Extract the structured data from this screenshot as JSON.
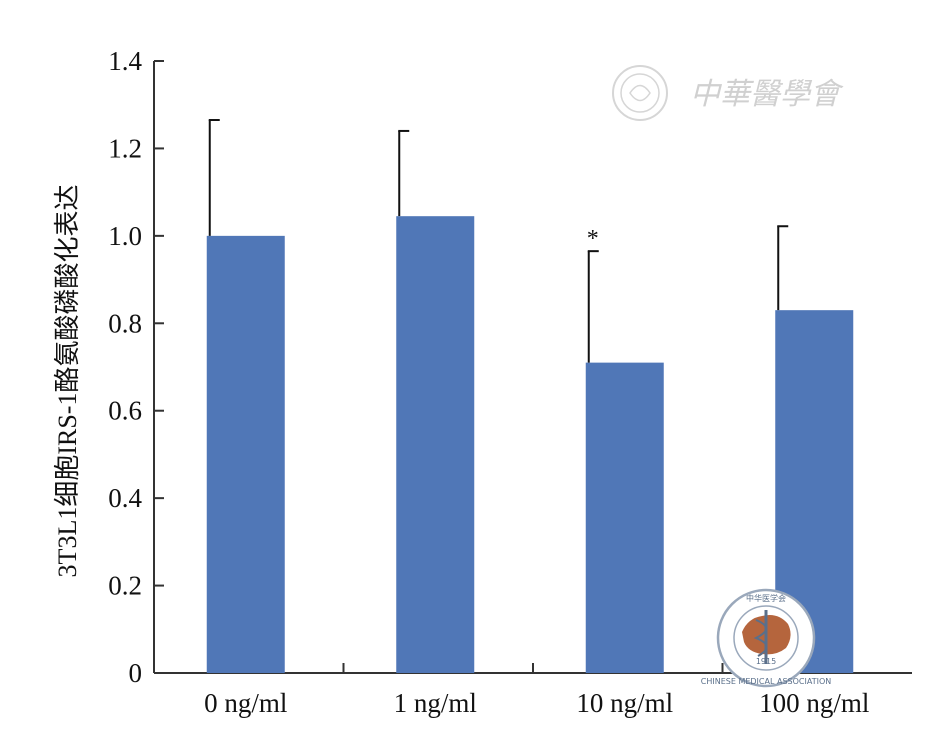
{
  "chart_data": {
    "type": "bar",
    "categories": [
      "0 ng/ml",
      "1 ng/ml",
      "10 ng/ml",
      "100 ng/ml"
    ],
    "values": [
      1.0,
      1.045,
      0.71,
      0.83
    ],
    "error_upper": [
      1.265,
      1.24,
      0.965,
      1.022
    ],
    "significance": [
      "",
      "",
      "*",
      ""
    ],
    "title": "",
    "xlabel": "",
    "ylabel": "3T3L1细胞IRS-1酪氨酸磷酸化表达",
    "ylim": [
      0,
      1.4
    ],
    "yticks": [
      0,
      0.2,
      0.4,
      0.6,
      0.8,
      1.0,
      1.2,
      1.4
    ],
    "ytick_labels": [
      "0",
      "0.2",
      "0.4",
      "0.6",
      "0.8",
      "1.0",
      "1.2",
      "1.4"
    ],
    "grid": false,
    "bar_color": "#5077b7",
    "axis_color": "#333333"
  },
  "watermark": {
    "text": "中華醫學會",
    "seal_text": "CHINESE MEDICAL ASSOCIATION",
    "seal_year": "1915",
    "seal_chars": "中华医学会"
  }
}
